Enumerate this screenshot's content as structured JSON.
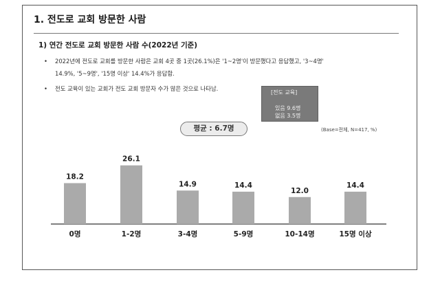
{
  "section_title": "1. 전도로 교회 방문한 사람",
  "sub_title": "1) 연간 전도로 교회 방문한 사람 수(2022년 기준)",
  "bullets": [
    {
      "dot": "•",
      "line1": "2022년에 전도로 교회를 방문한 사람은 교회 4곳 중 1곳(26.1%)은 '1~2명'이 방문했다고 응답했고, '3~4명'",
      "line2": "14.9%, '5~9명', '15명 이상' 14.4%가 응답함."
    },
    {
      "dot": "•",
      "line1": "전도 교육이 있는 교회가 전도 교회 방문자 수가 많은 것으로 나타남."
    }
  ],
  "callout": {
    "title": "[전도 교육]",
    "line1": "있음 9.6명",
    "line2": "없음 3.5명"
  },
  "average_label": "평균 : 6.7명",
  "base_note": "(Base=전체, N=417, %)",
  "colors": {
    "bar": "#aaaaaa",
    "bar_highlight": "#aaaaaa",
    "axis": "#333333",
    "frame": "#555555"
  },
  "chart_data": {
    "type": "bar",
    "categories": [
      "0명",
      "1-2명",
      "3-4명",
      "5-9명",
      "10-14명",
      "15명 이상"
    ],
    "values": [
      18.2,
      26.1,
      14.9,
      14.4,
      12.0,
      14.4
    ],
    "value_labels": [
      "18.2",
      "26.1",
      "14.9",
      "14.4",
      "12.0",
      "14.4"
    ],
    "title": "",
    "xlabel": "",
    "ylabel": "",
    "ylim": [
      0,
      28
    ],
    "grid": false,
    "legend": "none"
  }
}
